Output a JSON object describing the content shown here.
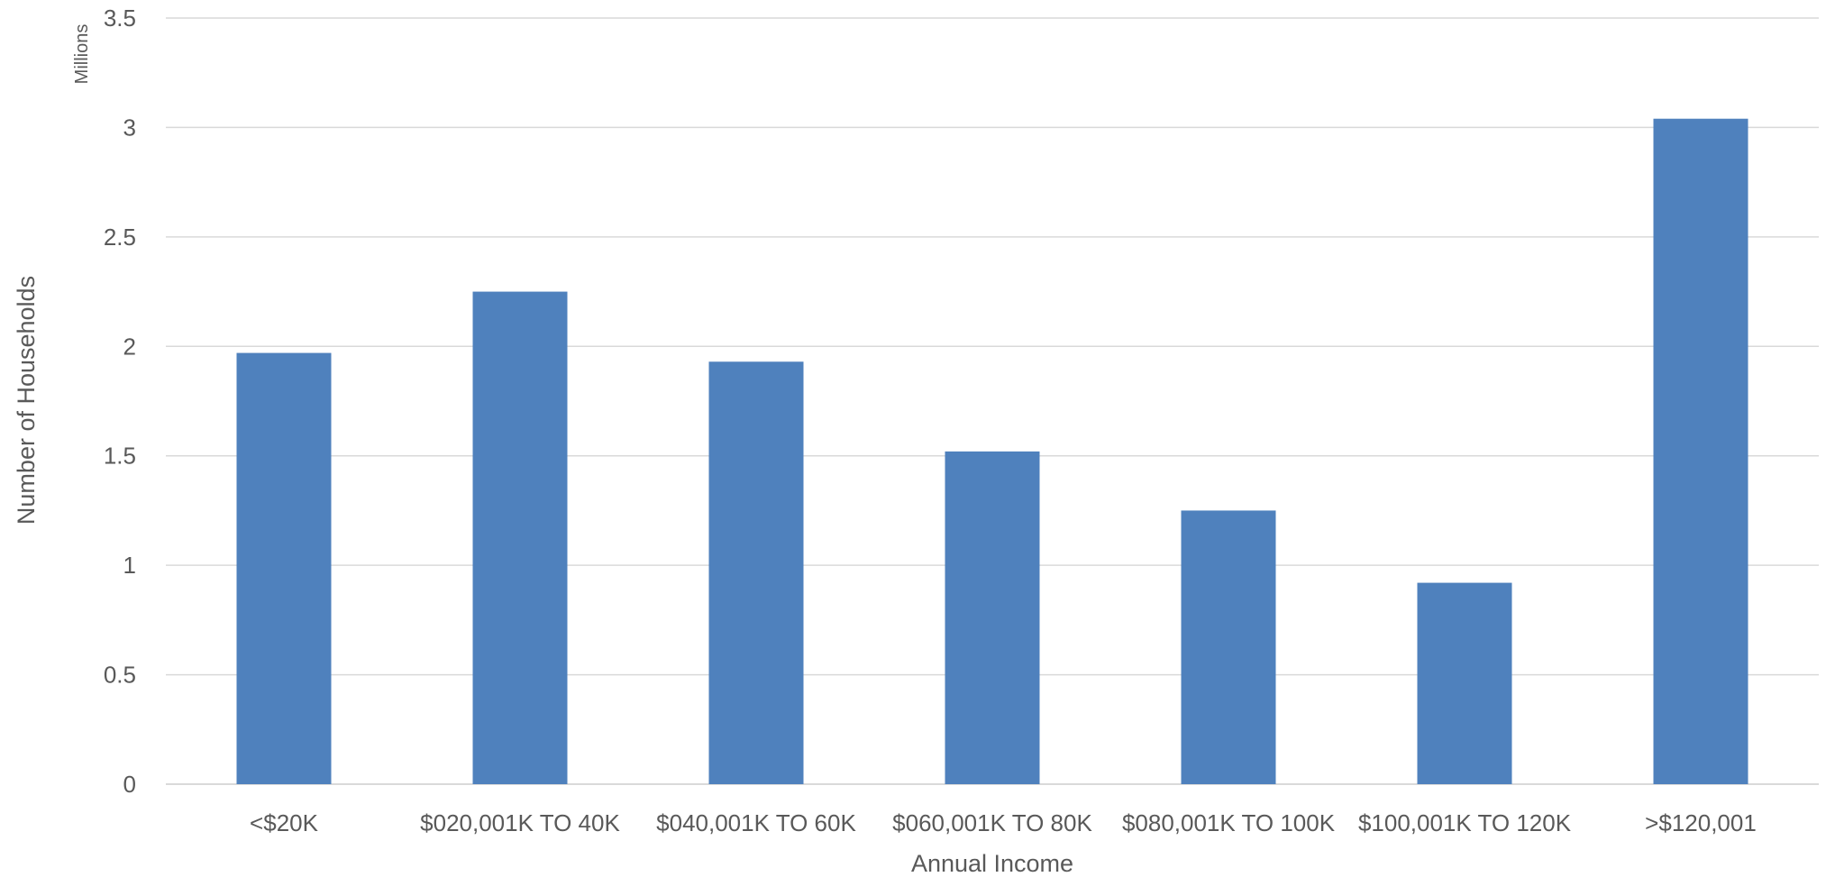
{
  "chart_data": {
    "type": "bar",
    "categories": [
      "<$20K",
      "$020,001K TO 40K",
      "$040,001K TO 60K",
      "$060,001K TO 80K",
      "$080,001K TO 100K",
      "$100,001K TO 120K",
      ">$120,001"
    ],
    "values": [
      1.97,
      2.25,
      1.93,
      1.52,
      1.25,
      0.92,
      3.04
    ],
    "title": "",
    "xlabel": "Annual Income",
    "ylabel": "Number of Households",
    "y_unit_label": "Millions",
    "ylim": [
      0,
      3.5
    ],
    "yticks": [
      "0",
      "0.5",
      "1",
      "1.5",
      "2",
      "2.5",
      "3",
      "3.5"
    ],
    "ytick_values": [
      0,
      0.5,
      1,
      1.5,
      2,
      2.5,
      3,
      3.5
    ],
    "grid": true,
    "legend": "none",
    "bar_color": "#4f81bd",
    "grid_color": "#d9d9d9",
    "text_color": "#595959"
  }
}
